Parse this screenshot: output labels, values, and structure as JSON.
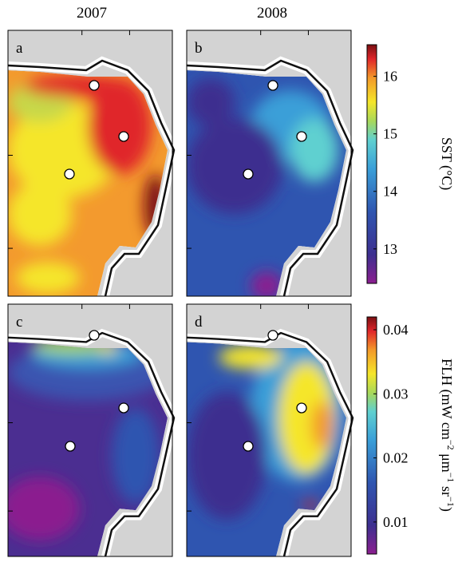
{
  "column_titles": [
    "2007",
    "2008"
  ],
  "panels": [
    {
      "label": "a"
    },
    {
      "label": "b"
    },
    {
      "label": "c"
    },
    {
      "label": "d"
    }
  ],
  "colorbars": [
    {
      "label_parts": [
        "SST (°C)"
      ],
      "lim": [
        12.4,
        16.55
      ],
      "ticks": [
        13,
        14,
        15,
        16
      ]
    },
    {
      "label_parts": [
        "FLH (mW cm",
        "−2",
        " μm",
        "−1",
        " sr",
        "−1",
        ")"
      ],
      "lim": [
        0.005,
        0.042
      ],
      "ticks": [
        0.01,
        0.02,
        0.03,
        0.04
      ]
    }
  ]
}
